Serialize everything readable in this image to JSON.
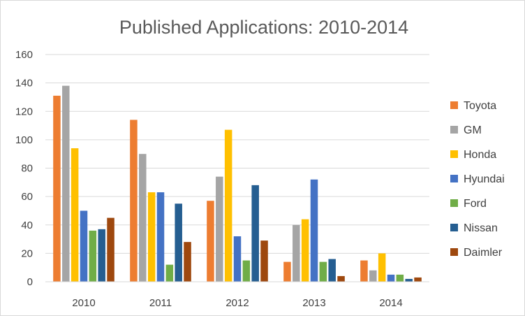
{
  "chart_data": {
    "type": "bar",
    "title": "Published Applications: 2010-2014",
    "xlabel": "",
    "ylabel": "",
    "categories": [
      "2010",
      "2011",
      "2012",
      "2013",
      "2014"
    ],
    "ylim": [
      0,
      160
    ],
    "yticks": [
      0,
      20,
      40,
      60,
      80,
      100,
      120,
      140,
      160
    ],
    "grid": true,
    "legend_position": "right",
    "series": [
      {
        "name": "Toyota",
        "color": "#ED7D31",
        "values": [
          131,
          114,
          57,
          14,
          15
        ]
      },
      {
        "name": "GM",
        "color": "#A5A5A5",
        "values": [
          138,
          90,
          74,
          40,
          8
        ]
      },
      {
        "name": "Honda",
        "color": "#FFC000",
        "values": [
          94,
          63,
          107,
          44,
          20
        ]
      },
      {
        "name": "Hyundai",
        "color": "#4472C4",
        "values": [
          50,
          63,
          32,
          72,
          5
        ]
      },
      {
        "name": "Ford",
        "color": "#70AD47",
        "values": [
          36,
          12,
          15,
          14,
          5
        ]
      },
      {
        "name": "Nissan",
        "color": "#255E91",
        "values": [
          37,
          55,
          68,
          16,
          2
        ]
      },
      {
        "name": "Daimler",
        "color": "#9E480E",
        "values": [
          45,
          28,
          29,
          4,
          3
        ]
      }
    ]
  }
}
